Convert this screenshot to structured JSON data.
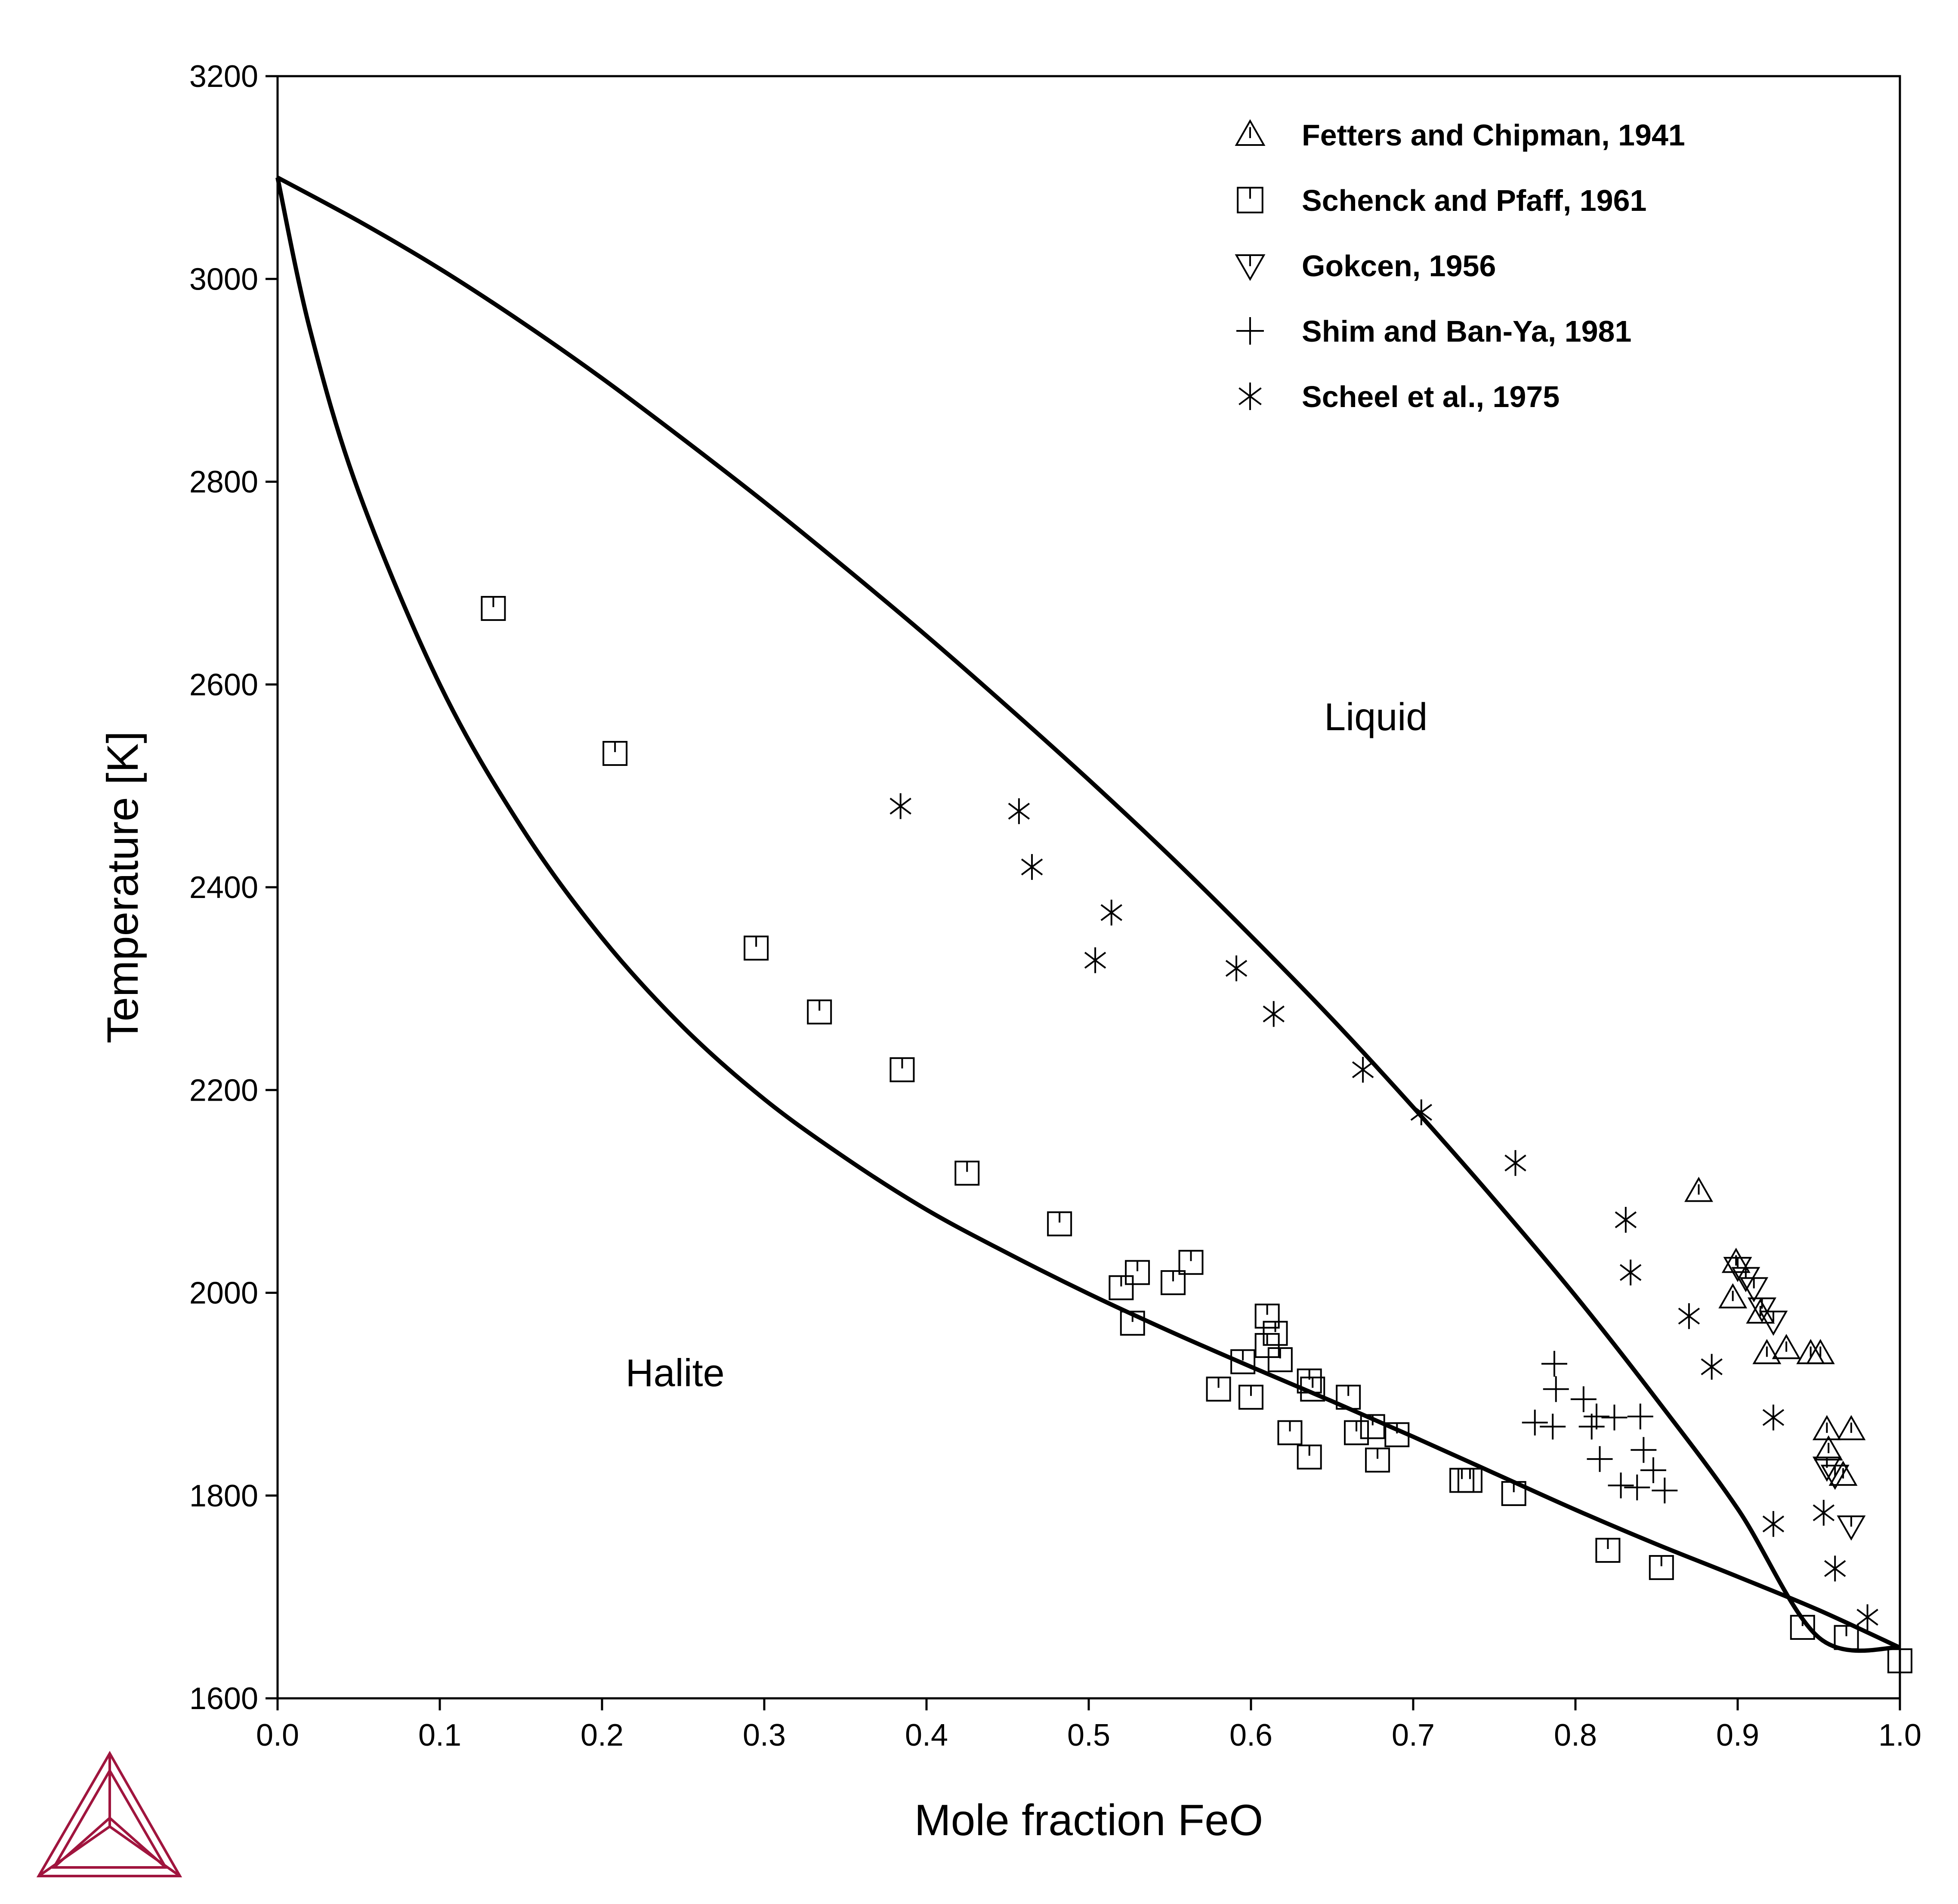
{
  "chart_data": {
    "type": "scatter",
    "title": "",
    "xlabel": "Mole fraction FeO",
    "ylabel": "Temperature [K]",
    "xlim": [
      0.0,
      1.0
    ],
    "ylim": [
      1600,
      3200
    ],
    "grid": false,
    "legend_position": "top-right",
    "x_ticks": [
      "0.0",
      "0.1",
      "0.2",
      "0.3",
      "0.4",
      "0.5",
      "0.6",
      "0.7",
      "0.8",
      "0.9",
      "1.0"
    ],
    "y_ticks": [
      "1600",
      "1800",
      "2000",
      "2200",
      "2400",
      "2600",
      "2800",
      "3000",
      "3200"
    ],
    "region_labels": [
      {
        "text": "Liquid",
        "x": 0.677,
        "y": 2555
      },
      {
        "text": "Halite",
        "x": 0.245,
        "y": 1908
      }
    ],
    "lines": [
      {
        "name": "liquidus",
        "x": [
          0.0,
          0.05,
          0.1,
          0.15,
          0.2,
          0.25,
          0.3,
          0.35,
          0.4,
          0.45,
          0.5,
          0.55,
          0.6,
          0.65,
          0.7,
          0.75,
          0.8,
          0.85,
          0.9,
          0.95,
          1.0
        ],
        "y": [
          3100,
          3057,
          3010,
          2958,
          2902,
          2842,
          2780,
          2715,
          2648,
          2578,
          2506,
          2431,
          2352,
          2270,
          2183,
          2092,
          1997,
          1895,
          1787,
          1660,
          1650
        ]
      },
      {
        "name": "solidus",
        "x": [
          0.0,
          0.02,
          0.05,
          0.1,
          0.15,
          0.2,
          0.25,
          0.3,
          0.35,
          0.4,
          0.45,
          0.5,
          0.55,
          0.6,
          0.65,
          0.7,
          0.75,
          0.8,
          0.85,
          0.9,
          0.95,
          1.0
        ],
        "y": [
          3100,
          2950,
          2790,
          2600,
          2460,
          2350,
          2262,
          2191,
          2133,
          2082,
          2039,
          1999,
          1962,
          1927,
          1893,
          1858,
          1822,
          1786,
          1752,
          1720,
          1687,
          1650
        ]
      }
    ],
    "series": [
      {
        "name": "Fetters and Chipman, 1941",
        "marker": "triangle-up",
        "x": [
          0.876,
          0.899,
          0.897,
          0.914,
          0.918,
          0.93,
          0.945,
          0.951,
          0.955,
          0.956,
          0.965,
          0.97
        ],
        "y": [
          2100,
          2030,
          1995,
          1980,
          1940,
          1945,
          1940,
          1940,
          1865,
          1845,
          1820,
          1865
        ]
      },
      {
        "name": "Schenck and Pfaff, 1961",
        "marker": "square",
        "x": [
          0.133,
          0.208,
          0.295,
          0.334,
          0.385,
          0.425,
          0.482,
          0.52,
          0.53,
          0.527,
          0.552,
          0.563,
          0.58,
          0.595,
          0.6,
          0.61,
          0.61,
          0.615,
          0.618,
          0.624,
          0.636,
          0.638,
          0.636,
          0.66,
          0.665,
          0.675,
          0.678,
          0.69,
          0.73,
          0.735,
          0.762,
          0.82,
          0.853,
          0.94,
          0.967,
          1.0
        ],
        "y": [
          2675,
          2532,
          2340,
          2277,
          2220,
          2118,
          2068,
          2005,
          2020,
          1970,
          2010,
          2030,
          1905,
          1932,
          1897,
          1977,
          1948,
          1960,
          1934,
          1862,
          1913,
          1905,
          1838,
          1897,
          1862,
          1868,
          1835,
          1860,
          1815,
          1815,
          1802,
          1746,
          1729,
          1670,
          1660,
          1637
        ]
      },
      {
        "name": "Gokcen, 1956",
        "marker": "triangle-down",
        "x": [
          0.9,
          0.905,
          0.91,
          0.915,
          0.922,
          0.955,
          0.96,
          0.97
        ],
        "y": [
          2025,
          2015,
          2005,
          1985,
          1972,
          1828,
          1820,
          1770
        ]
      },
      {
        "name": "Shim and Ban-Ya, 1981",
        "marker": "plus",
        "x": [
          0.787,
          0.788,
          0.775,
          0.786,
          0.805,
          0.813,
          0.824,
          0.81,
          0.815,
          0.84,
          0.842,
          0.848,
          0.855,
          0.828,
          0.838
        ],
        "y": [
          1930,
          1905,
          1872,
          1868,
          1895,
          1878,
          1877,
          1868,
          1836,
          1878,
          1845,
          1825,
          1805,
          1810,
          1808
        ]
      },
      {
        "name": "Scheel et al., 1975",
        "marker": "star",
        "x": [
          0.384,
          0.457,
          0.465,
          0.514,
          0.504,
          0.591,
          0.614,
          0.669,
          0.705,
          0.763,
          0.831,
          0.834,
          0.87,
          0.884,
          0.922,
          0.922,
          0.953,
          0.96,
          0.98
        ],
        "y": [
          2480,
          2475,
          2420,
          2375,
          2328,
          2320,
          2275,
          2220,
          2178,
          2128,
          2072,
          2020,
          1977,
          1927,
          1877,
          1772,
          1783,
          1728,
          1680
        ]
      }
    ]
  },
  "logo": {
    "name": "thermo-calc-logo",
    "color": "#a0153e"
  }
}
